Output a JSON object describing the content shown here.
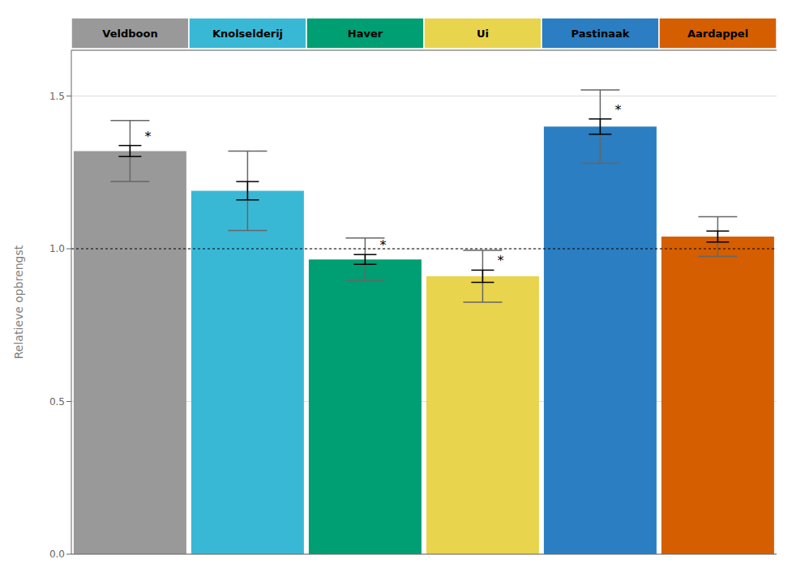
{
  "chart_data": {
    "type": "bar",
    "categories": [
      "Veldboon",
      "Knolselderij",
      "Haver",
      "Ui",
      "Pastinaak",
      "Aardappel"
    ],
    "values": [
      1.32,
      1.19,
      0.965,
      0.91,
      1.4,
      1.04
    ],
    "colors": [
      "#999999",
      "#39B8D6",
      "#009E73",
      "#E8D44D",
      "#2B7EC1",
      "#D55E00"
    ],
    "se_upper": [
      0.018,
      0.03,
      0.016,
      0.02,
      0.025,
      0.018
    ],
    "se_lower": [
      0.018,
      0.03,
      0.016,
      0.02,
      0.025,
      0.018
    ],
    "inner_upper": [
      0.1,
      0.13,
      0.07,
      0.085,
      0.12,
      0.065
    ],
    "inner_lower": [
      0.1,
      0.13,
      0.07,
      0.085,
      0.12,
      0.065
    ],
    "annotations": [
      "*",
      null,
      "*",
      "*",
      "*",
      null
    ],
    "y_label": "Relatieve opbrengst",
    "ylim": [
      0.0,
      1.65
    ],
    "yticks": [
      {
        "value": 0.0,
        "label": "0.0"
      },
      {
        "value": 0.5,
        "label": "0.5"
      },
      {
        "value": 1.0,
        "label": "1.0"
      },
      {
        "value": 1.5,
        "label": "1.5"
      }
    ],
    "reference_line": 1.0,
    "grid": true
  }
}
